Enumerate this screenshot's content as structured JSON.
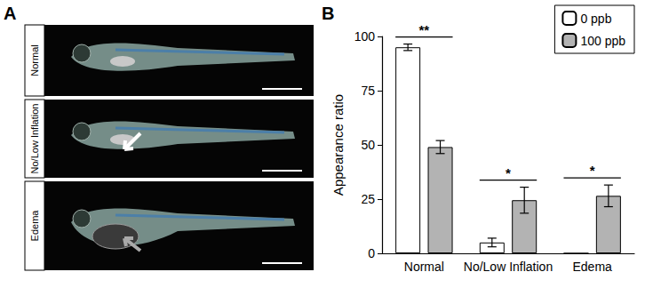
{
  "figure": {
    "panels": [
      {
        "label": "A",
        "rows": [
          "Normal",
          "No/Low Inflation",
          "Edema"
        ]
      },
      {
        "label": "B"
      }
    ]
  },
  "chart_data": {
    "type": "bar",
    "categories": [
      "Normal",
      "No/Low Inflation",
      "Edema"
    ],
    "y_label": "Appearance ratio",
    "ylim": [
      0,
      100
    ],
    "yticks": [
      0,
      25,
      50,
      75,
      100
    ],
    "grid": false,
    "legend": "upper right",
    "series": [
      {
        "name": "0 ppb",
        "color": "#ffffff",
        "values": [
          95,
          5,
          0
        ],
        "errors": [
          1.5,
          2,
          0
        ]
      },
      {
        "name": "100 ppb",
        "color": "#b3b3b3",
        "values": [
          49,
          24.5,
          26.5
        ],
        "errors": [
          3,
          6,
          5
        ]
      }
    ],
    "annotations": [
      {
        "category": "Normal",
        "text": "**"
      },
      {
        "category": "No/Low Inflation",
        "text": "*"
      },
      {
        "category": "Edema",
        "text": "*"
      }
    ]
  }
}
